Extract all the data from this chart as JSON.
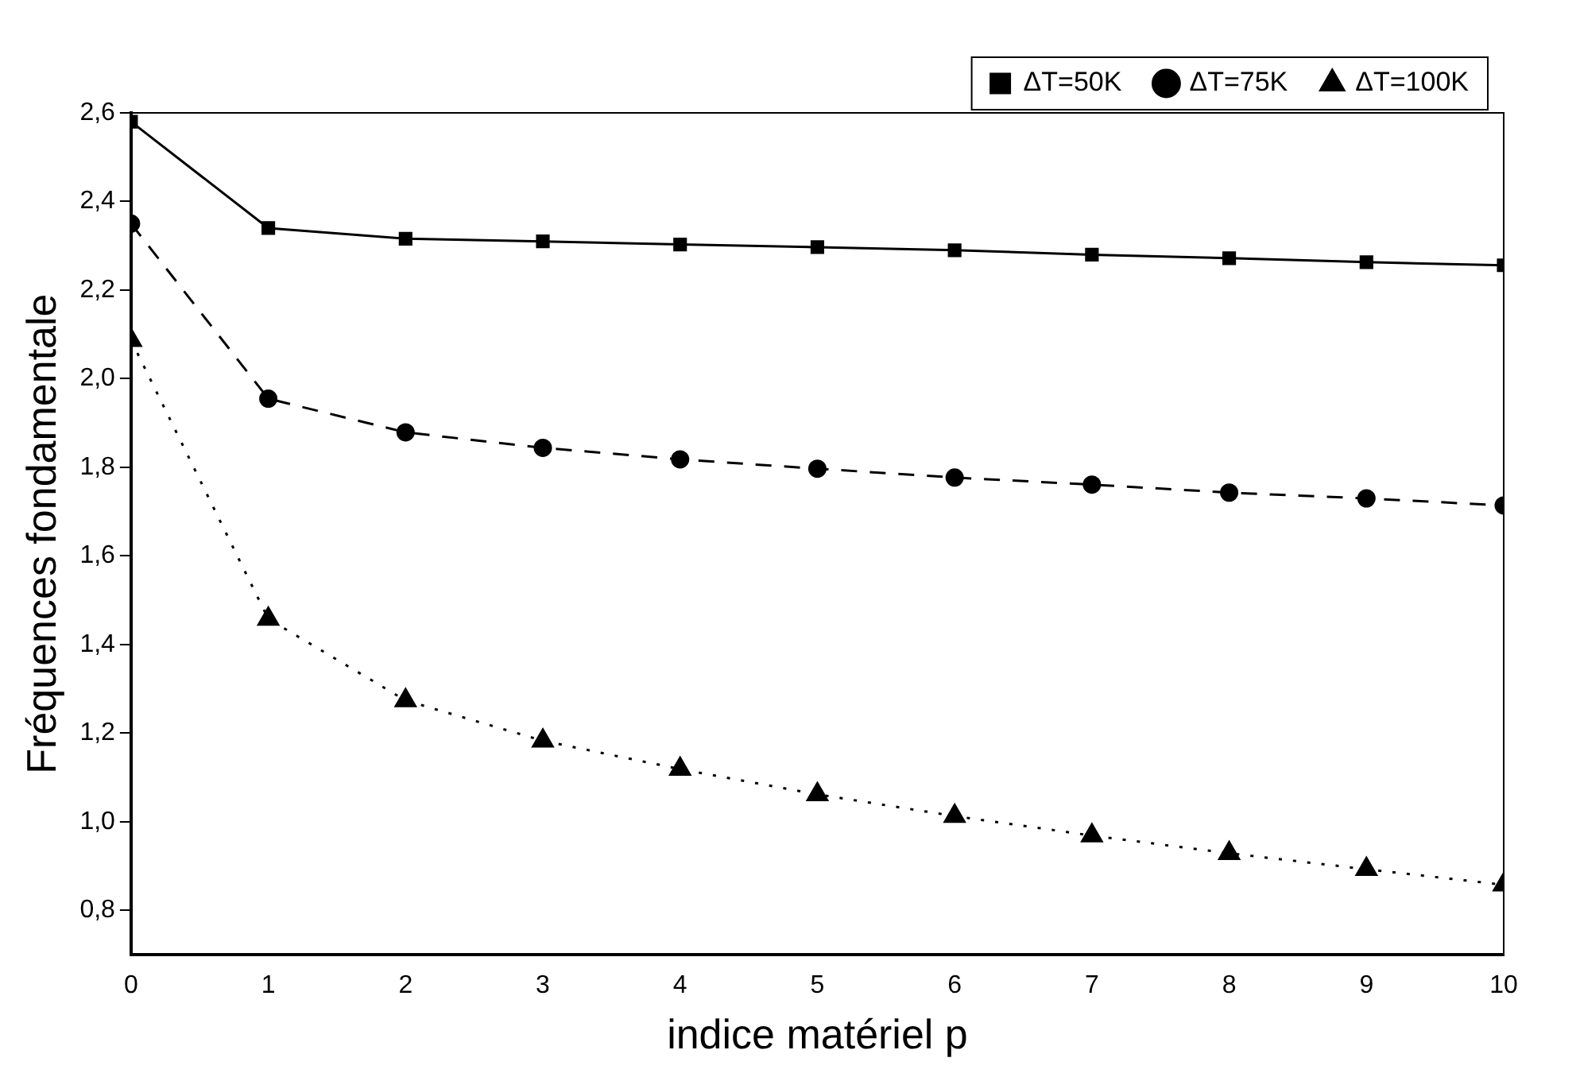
{
  "chart_data": {
    "type": "line",
    "xlabel": "indice matériel p",
    "ylabel": "Fréquences fondamentale",
    "x": [
      0,
      1,
      2,
      3,
      4,
      5,
      6,
      7,
      8,
      9,
      10
    ],
    "xlim": [
      0,
      10
    ],
    "xticks": [
      0,
      1,
      2,
      3,
      4,
      5,
      6,
      7,
      8,
      9,
      10
    ],
    "ylim": [
      0.7,
      2.6
    ],
    "yticks": [
      {
        "value": 0.8,
        "label": "0,8"
      },
      {
        "value": 1.0,
        "label": "1,0"
      },
      {
        "value": 1.2,
        "label": "1,2"
      },
      {
        "value": 1.4,
        "label": "1,4"
      },
      {
        "value": 1.6,
        "label": "1,6"
      },
      {
        "value": 1.8,
        "label": "1,8"
      },
      {
        "value": 2.0,
        "label": "2,0"
      },
      {
        "value": 2.2,
        "label": "2,2"
      },
      {
        "value": 2.4,
        "label": "2,4"
      },
      {
        "value": 2.6,
        "label": "2,6"
      }
    ],
    "grid": false,
    "legend": "top right",
    "series": [
      {
        "name": "ΔT=50K",
        "color": "#000000",
        "marker": "square",
        "line_style": "solid",
        "values": [
          2.58,
          2.34,
          2.316,
          2.31,
          2.303,
          2.297,
          2.29,
          2.28,
          2.272,
          2.263,
          2.256
        ]
      },
      {
        "name": "ΔT=75K",
        "color": "#000000",
        "marker": "circle",
        "line_style": "dashed",
        "values": [
          2.35,
          1.955,
          1.879,
          1.844,
          1.818,
          1.797,
          1.777,
          1.761,
          1.743,
          1.73,
          1.714
        ]
      },
      {
        "name": "ΔT=100K",
        "color": "#000000",
        "marker": "triangle",
        "line_style": "dotted",
        "values": [
          2.087,
          1.458,
          1.274,
          1.183,
          1.119,
          1.062,
          1.013,
          0.969,
          0.929,
          0.893,
          0.858
        ]
      }
    ]
  }
}
